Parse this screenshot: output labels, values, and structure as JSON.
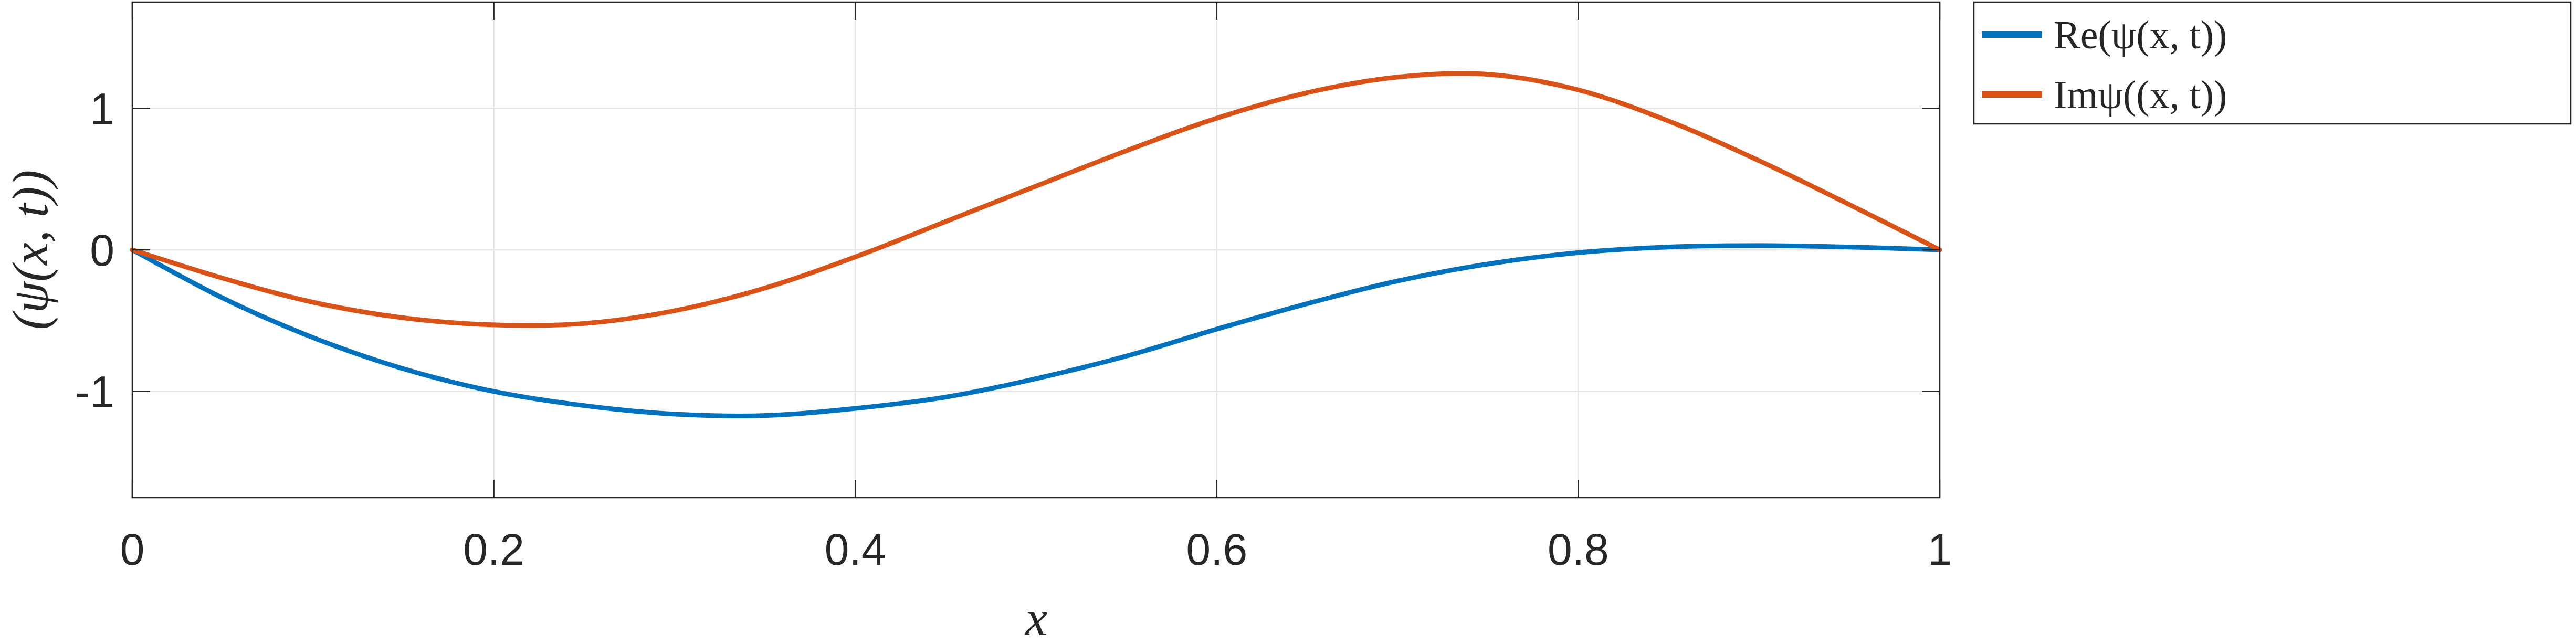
{
  "chart_data": {
    "type": "line",
    "title": "",
    "xlabel": "x",
    "ylabel": "(ψ(x, t))",
    "xlim": [
      0,
      1
    ],
    "ylim": [
      -1.75,
      1.75
    ],
    "xticks": [
      0,
      0.2,
      0.4,
      0.6,
      0.8,
      1
    ],
    "xtick_labels": [
      "0",
      "0.2",
      "0.4",
      "0.6",
      "0.8",
      "1"
    ],
    "yticks": [
      -1,
      0,
      1
    ],
    "ytick_labels": [
      "-1",
      "0",
      "1"
    ],
    "grid": true,
    "legend_position": "outside-right-top",
    "x": [
      0,
      0.05,
      0.1,
      0.15,
      0.2,
      0.25,
      0.3,
      0.35,
      0.4,
      0.45,
      0.5,
      0.55,
      0.6,
      0.65,
      0.7,
      0.75,
      0.8,
      0.85,
      0.9,
      0.95,
      1
    ],
    "series": [
      {
        "name": "Re(ψ(x, t))",
        "color": "#0072BD",
        "values": [
          0,
          -0.34,
          -0.62,
          -0.84,
          -1.0,
          -1.1,
          -1.16,
          -1.17,
          -1.12,
          -1.04,
          -0.91,
          -0.75,
          -0.56,
          -0.38,
          -0.22,
          -0.1,
          -0.02,
          0.02,
          0.03,
          0.02,
          0
        ]
      },
      {
        "name": "Imψ((x, t))",
        "color": "#D95319",
        "values": [
          0,
          -0.2,
          -0.37,
          -0.48,
          -0.53,
          -0.52,
          -0.43,
          -0.27,
          -0.05,
          0.2,
          0.45,
          0.7,
          0.93,
          1.11,
          1.22,
          1.24,
          1.13,
          0.91,
          0.63,
          0.32,
          0
        ]
      }
    ]
  }
}
